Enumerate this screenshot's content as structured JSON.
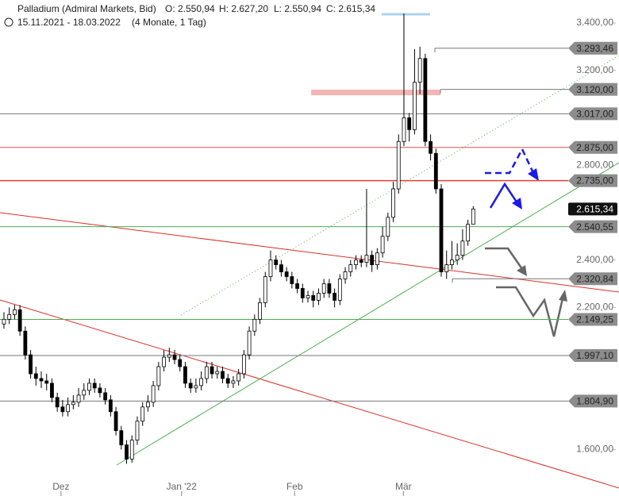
{
  "chart_data": {
    "type": "candlestick",
    "header": {
      "title": "Palladium (Admiral Markets, Bid)",
      "ohlc": [
        "O: 2.550,94",
        "H: 2.627,20",
        "L: 2.550,94",
        "C: 2.615,34"
      ],
      "range": "15.11.2021 - 18.03.2022",
      "span": "(4 Monate, 1 Tag)"
    },
    "open": [
      2130,
      2150,
      2170,
      2190,
      2100,
      2000,
      1920,
      1900,
      1890,
      1880,
      1820,
      1780,
      1760,
      1790,
      1800,
      1830,
      1850,
      1880,
      1860,
      1840,
      1810,
      1760,
      1680,
      1620,
      1560,
      1640,
      1720,
      1780,
      1800,
      1870,
      1950,
      1990,
      2000,
      1980,
      1950,
      1880,
      1860,
      1870,
      1900,
      1950,
      1920,
      1930,
      1900,
      1880,
      1890,
      1920,
      2000,
      2100,
      2150,
      2220,
      2330,
      2400,
      2380,
      2350,
      2330,
      2300,
      2280,
      2240,
      2250,
      2230,
      2260,
      2300,
      2260,
      2230,
      2320,
      2350,
      2380,
      2400,
      2390,
      2420,
      2380,
      2430,
      2500,
      2580,
      2700,
      2900,
      3000,
      2950,
      3150,
      3250,
      2900,
      2850,
      2700,
      2350,
      2380,
      2400,
      2420,
      2480,
      2550.94
    ],
    "high": [
      2180,
      2200,
      2210,
      2210,
      2120,
      2020,
      1950,
      1930,
      1920,
      1900,
      1840,
      1810,
      1820,
      1830,
      1860,
      1880,
      1900,
      1900,
      1880,
      1860,
      1830,
      1780,
      1700,
      1640,
      1660,
      1740,
      1800,
      1830,
      1890,
      1970,
      2020,
      2030,
      2020,
      2000,
      1970,
      1900,
      1900,
      1930,
      1970,
      1970,
      1950,
      1950,
      1920,
      1910,
      1940,
      2020,
      2120,
      2170,
      2240,
      2350,
      2440,
      2420,
      2400,
      2370,
      2350,
      2320,
      2300,
      2270,
      2270,
      2280,
      2320,
      2320,
      2280,
      2340,
      2370,
      2400,
      2420,
      2420,
      2700,
      2440,
      2450,
      2540,
      2600,
      2730,
      2930,
      3440,
      3020,
      3290,
      3300,
      3270,
      2930,
      2870,
      2720,
      2440,
      2480,
      2470,
      2530,
      2570,
      2627.2
    ],
    "low": [
      2110,
      2130,
      2150,
      2080,
      1980,
      1900,
      1870,
      1860,
      1850,
      1800,
      1760,
      1740,
      1740,
      1770,
      1780,
      1810,
      1830,
      1840,
      1820,
      1790,
      1740,
      1660,
      1600,
      1540,
      1545,
      1620,
      1700,
      1760,
      1780,
      1850,
      1930,
      1970,
      1960,
      1930,
      1860,
      1840,
      1840,
      1850,
      1880,
      1900,
      1900,
      1880,
      1860,
      1860,
      1870,
      1900,
      1980,
      2080,
      2130,
      2200,
      2310,
      2360,
      2330,
      2310,
      2280,
      2260,
      2220,
      2220,
      2200,
      2210,
      2240,
      2240,
      2200,
      2210,
      2300,
      2330,
      2360,
      2370,
      2370,
      2350,
      2360,
      2410,
      2480,
      2560,
      2680,
      2880,
      2900,
      2930,
      3100,
      2880,
      2820,
      2680,
      2330,
      2320,
      2360,
      2380,
      2400,
      2460,
      2550.94
    ],
    "close": [
      2150,
      2170,
      2190,
      2100,
      2000,
      1920,
      1900,
      1890,
      1880,
      1820,
      1780,
      1760,
      1790,
      1800,
      1830,
      1850,
      1880,
      1860,
      1840,
      1810,
      1760,
      1680,
      1620,
      1560,
      1640,
      1720,
      1780,
      1800,
      1870,
      1950,
      1990,
      2000,
      1980,
      1950,
      1880,
      1860,
      1870,
      1900,
      1950,
      1920,
      1930,
      1900,
      1880,
      1890,
      1920,
      2000,
      2100,
      2150,
      2220,
      2330,
      2400,
      2380,
      2350,
      2330,
      2300,
      2280,
      2240,
      2250,
      2230,
      2260,
      2300,
      2260,
      2230,
      2320,
      2350,
      2380,
      2400,
      2390,
      2420,
      2380,
      2430,
      2500,
      2580,
      2700,
      2900,
      3000,
      2950,
      3150,
      3250,
      2900,
      2850,
      2700,
      2350,
      2380,
      2400,
      2420,
      2480,
      2550.94,
      2615.34
    ],
    "up_color": "#ffffff",
    "down_color": "#000000",
    "xlim": [
      -0.74,
      115.33
    ],
    "xticks": [
      {
        "value": 10.7,
        "label": "Dez"
      },
      {
        "value": 33.3,
        "label": "Jan '22"
      },
      {
        "value": 54.5,
        "label": "Feb"
      },
      {
        "value": 74.9,
        "label": "Mär"
      }
    ],
    "ylim": [
      1488,
      3497
    ],
    "yticks": [
      {
        "value": 3400,
        "label": "3.400,00"
      },
      {
        "value": 3200,
        "label": "3.200,00"
      },
      {
        "value": 2800,
        "label": "2.800,00"
      },
      {
        "value": 2400,
        "label": "2.400,00"
      },
      {
        "value": 2200,
        "label": "2.200,00"
      },
      {
        "value": 1600,
        "label": "1.600,00"
      }
    ],
    "levels": [
      {
        "value": 3293.46,
        "label": "3.293,46",
        "color": "#777777"
      },
      {
        "value": 3120.0,
        "label": "3.120,00",
        "color": "#777777"
      },
      {
        "value": 3017.0,
        "label": "3.017,00",
        "color": "#777777"
      },
      {
        "value": 2875.0,
        "label": "2.875,00",
        "color": "#d9534f"
      },
      {
        "value": 2735.0,
        "label": "2.735,00",
        "color": "#e0403a"
      },
      {
        "value": 2540.55,
        "label": "2.540,55",
        "color": "#4caf50"
      },
      {
        "value": 2320.84,
        "label": "2.320,84",
        "color": "#777777"
      },
      {
        "value": 2149.25,
        "label": "2.149,25",
        "color": "#4caf50"
      },
      {
        "value": 1997.1,
        "label": "1.997,10",
        "color": "#777777"
      },
      {
        "value": 1804.9,
        "label": "1.804,90",
        "color": "#777777"
      }
    ],
    "price_marker": {
      "value": 2615.34,
      "label": "2.615,34"
    }
  }
}
